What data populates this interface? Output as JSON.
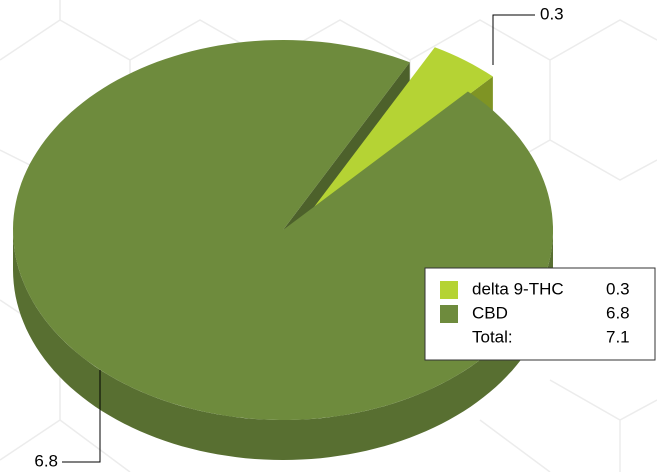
{
  "chart_data": {
    "type": "pie3d",
    "categories": [
      "delta 9-THC",
      "CBD"
    ],
    "values": [
      0.3,
      6.8
    ],
    "colors": [
      "#b5d334",
      "#6e8b3d"
    ],
    "total_label": "Total:",
    "total": 7.1
  }
}
